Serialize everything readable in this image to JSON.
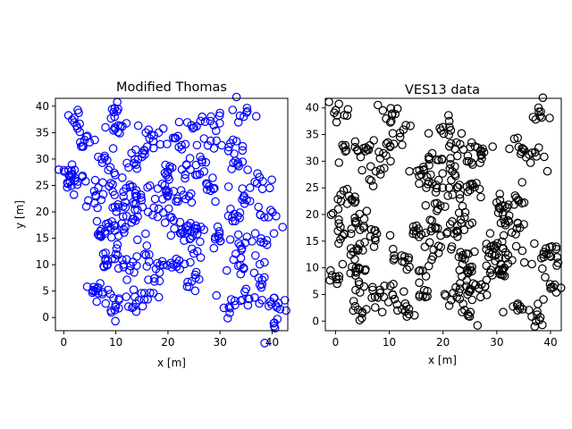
{
  "chart_data": [
    {
      "type": "scatter",
      "title": "Modified Thomas",
      "xlabel": "x [m]",
      "ylabel": "y [m]",
      "xlim": [
        -1.6,
        43.0
      ],
      "ylim": [
        -2.5,
        41.5
      ],
      "xticks": [
        0,
        10,
        20,
        30,
        40
      ],
      "yticks": [
        0,
        5,
        10,
        15,
        20,
        25,
        30,
        35,
        40
      ],
      "marker": "open-circle",
      "color": "#0000ff",
      "grid": false,
      "cluster_points": [
        [
          2.0,
          37.8
        ],
        [
          4.0,
          33.6
        ],
        [
          7.3,
          30.0
        ],
        [
          9.6,
          38.9
        ],
        [
          10.4,
          35.1
        ],
        [
          1.5,
          27.8
        ],
        [
          3.5,
          26.6
        ],
        [
          9.4,
          25.2
        ],
        [
          13.5,
          29.2
        ],
        [
          15.5,
          31.6
        ],
        [
          20.0,
          27.6
        ],
        [
          24.3,
          28.0
        ],
        [
          19.8,
          24.0
        ],
        [
          23.0,
          23.2
        ],
        [
          28.2,
          24.0
        ],
        [
          26.5,
          29.8
        ],
        [
          33.4,
          29.0
        ],
        [
          32.0,
          33.0
        ],
        [
          25.0,
          36.0
        ],
        [
          21.0,
          34.0
        ],
        [
          35.1,
          38.8
        ],
        [
          28.8,
          36.4
        ],
        [
          38.2,
          25.8
        ],
        [
          34.6,
          23.0
        ],
        [
          39.3,
          19.0
        ],
        [
          33.4,
          19.2
        ],
        [
          29.8,
          15.0
        ],
        [
          33.9,
          13.6
        ],
        [
          37.8,
          14.3
        ],
        [
          33.9,
          9.9
        ],
        [
          37.4,
          7.5
        ],
        [
          35.6,
          3.5
        ],
        [
          39.7,
          3.0
        ],
        [
          31.7,
          2.0
        ],
        [
          24.6,
          13.0
        ],
        [
          24.6,
          6.9
        ],
        [
          21.0,
          10.0
        ],
        [
          18.4,
          8.5
        ],
        [
          15.8,
          11.8
        ],
        [
          15.5,
          4.6
        ],
        [
          13.4,
          2.0
        ],
        [
          9.8,
          1.4
        ],
        [
          12.6,
          8.9
        ],
        [
          8.4,
          10.0
        ],
        [
          10.0,
          12.0
        ],
        [
          7.4,
          4.4
        ],
        [
          6.1,
          5.0
        ],
        [
          11.5,
          16.7
        ],
        [
          8.5,
          17.1
        ],
        [
          14.2,
          19.1
        ],
        [
          17.3,
          20.8
        ],
        [
          20.7,
          19.0
        ],
        [
          22.9,
          16.1
        ],
        [
          25.6,
          15.8
        ],
        [
          12.8,
          24.7
        ],
        [
          14.8,
          23.2
        ],
        [
          10.4,
          21.4
        ],
        [
          6.1,
          23.1
        ],
        [
          16.8,
          34.6
        ],
        [
          1.2,
          25.7
        ],
        [
          41.0,
          -0.3
        ],
        [
          7.9,
          16.3
        ]
      ]
    },
    {
      "type": "scatter",
      "title": "VES13 data",
      "xlabel": "x [m]",
      "ylabel": "",
      "xlim": [
        -1.9,
        42.0
      ],
      "ylim": [
        -1.8,
        41.8
      ],
      "xticks": [
        0,
        10,
        20,
        30,
        40
      ],
      "yticks": [
        0,
        5,
        10,
        15,
        20,
        25,
        30,
        35,
        40
      ],
      "marker": "open-circle",
      "color": "#000000",
      "grid": false,
      "cluster_points": [
        [
          0.3,
          38.6
        ],
        [
          1.8,
          33.0
        ],
        [
          5.9,
          32.2
        ],
        [
          8.9,
          31.5
        ],
        [
          7.5,
          28.1
        ],
        [
          12.0,
          35.3
        ],
        [
          10.5,
          38.6
        ],
        [
          0.5,
          21.0
        ],
        [
          2.5,
          23.5
        ],
        [
          1.3,
          16.0
        ],
        [
          3.3,
          13.0
        ],
        [
          3.8,
          10.0
        ],
        [
          5.2,
          17.5
        ],
        [
          4.4,
          6.9
        ],
        [
          4.2,
          2.1
        ],
        [
          0.3,
          7.0
        ],
        [
          8.3,
          5.3
        ],
        [
          10.6,
          5.0
        ],
        [
          13.0,
          1.8
        ],
        [
          15.5,
          9.4
        ],
        [
          16.5,
          5.8
        ],
        [
          16.0,
          27.5
        ],
        [
          18.0,
          25.8
        ],
        [
          19.5,
          21.7
        ],
        [
          19.6,
          13.9
        ],
        [
          18.6,
          17.6
        ],
        [
          17.5,
          30.5
        ],
        [
          22.2,
          29.0
        ],
        [
          22.5,
          33.5
        ],
        [
          24.6,
          31.0
        ],
        [
          27.2,
          30.5
        ],
        [
          22.6,
          25.1
        ],
        [
          25.0,
          24.6
        ],
        [
          24.0,
          19.5
        ],
        [
          22.5,
          16.9
        ],
        [
          23.6,
          11.9
        ],
        [
          24.7,
          9.0
        ],
        [
          25.0,
          5.6
        ],
        [
          24.6,
          1.3
        ],
        [
          27.8,
          6.5
        ],
        [
          28.9,
          9.6
        ],
        [
          31.6,
          11.8
        ],
        [
          30.1,
          14.6
        ],
        [
          31.3,
          19.1
        ],
        [
          34.3,
          17.5
        ],
        [
          34.1,
          22.5
        ],
        [
          30.6,
          22.7
        ],
        [
          34.9,
          32.3
        ],
        [
          37.4,
          30.9
        ],
        [
          38.7,
          12.5
        ],
        [
          39.9,
          12.2
        ],
        [
          38.2,
          39.3
        ],
        [
          40.0,
          6.1
        ],
        [
          37.5,
          1.2
        ],
        [
          33.8,
          3.0
        ],
        [
          31.1,
          9.6
        ],
        [
          21.9,
          5.3
        ],
        [
          15.0,
          17.0
        ],
        [
          20.0,
          36.4
        ],
        [
          12.3,
          12.3
        ],
        [
          7.4,
          17.0
        ],
        [
          28.9,
          14.0
        ]
      ]
    }
  ]
}
